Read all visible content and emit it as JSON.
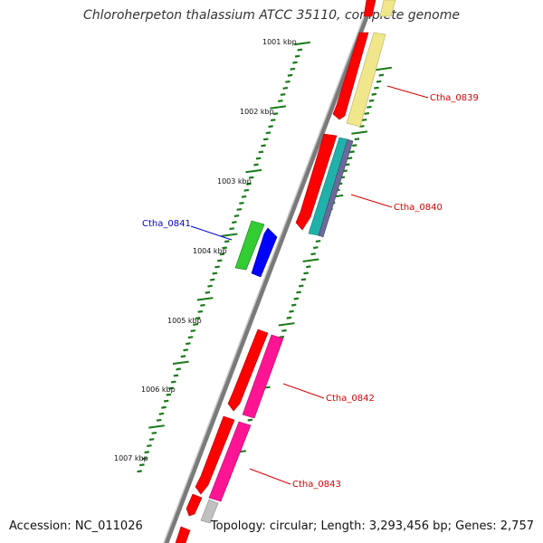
{
  "title": "Chloroherpeton thalassium ATCC 35110, complete genome",
  "footer": {
    "accession": "Accession: NC_011026",
    "summary": "Topology: circular; Length: 3,293,456 bp; Genes: 2,757"
  },
  "scale": {
    "ticks": [
      "1001 kbp",
      "1002 kbp",
      "1003 kbp",
      "1004 kbp",
      "1005 kbp",
      "1006 kbp",
      "1007 kbp"
    ]
  },
  "genes": [
    {
      "label": "Ctha_0839",
      "color": "#d40000"
    },
    {
      "label": "Ctha_0840",
      "color": "#d40000"
    },
    {
      "label": "Ctha_0841",
      "color": "#0000cc"
    },
    {
      "label": "Ctha_0842",
      "color": "#d40000"
    },
    {
      "label": "Ctha_0843",
      "color": "#d40000"
    }
  ],
  "colors": {
    "backbone": "#808080",
    "tick": "#1a7a1a",
    "cds": "#ff0000",
    "pink": "#ff1493",
    "yellow": "#f0e68c",
    "green": "#33cc33",
    "blue": "#0000ff",
    "teal": "#20b2aa",
    "slate": "#6a6a9a",
    "grey": "#c0c0c0"
  }
}
